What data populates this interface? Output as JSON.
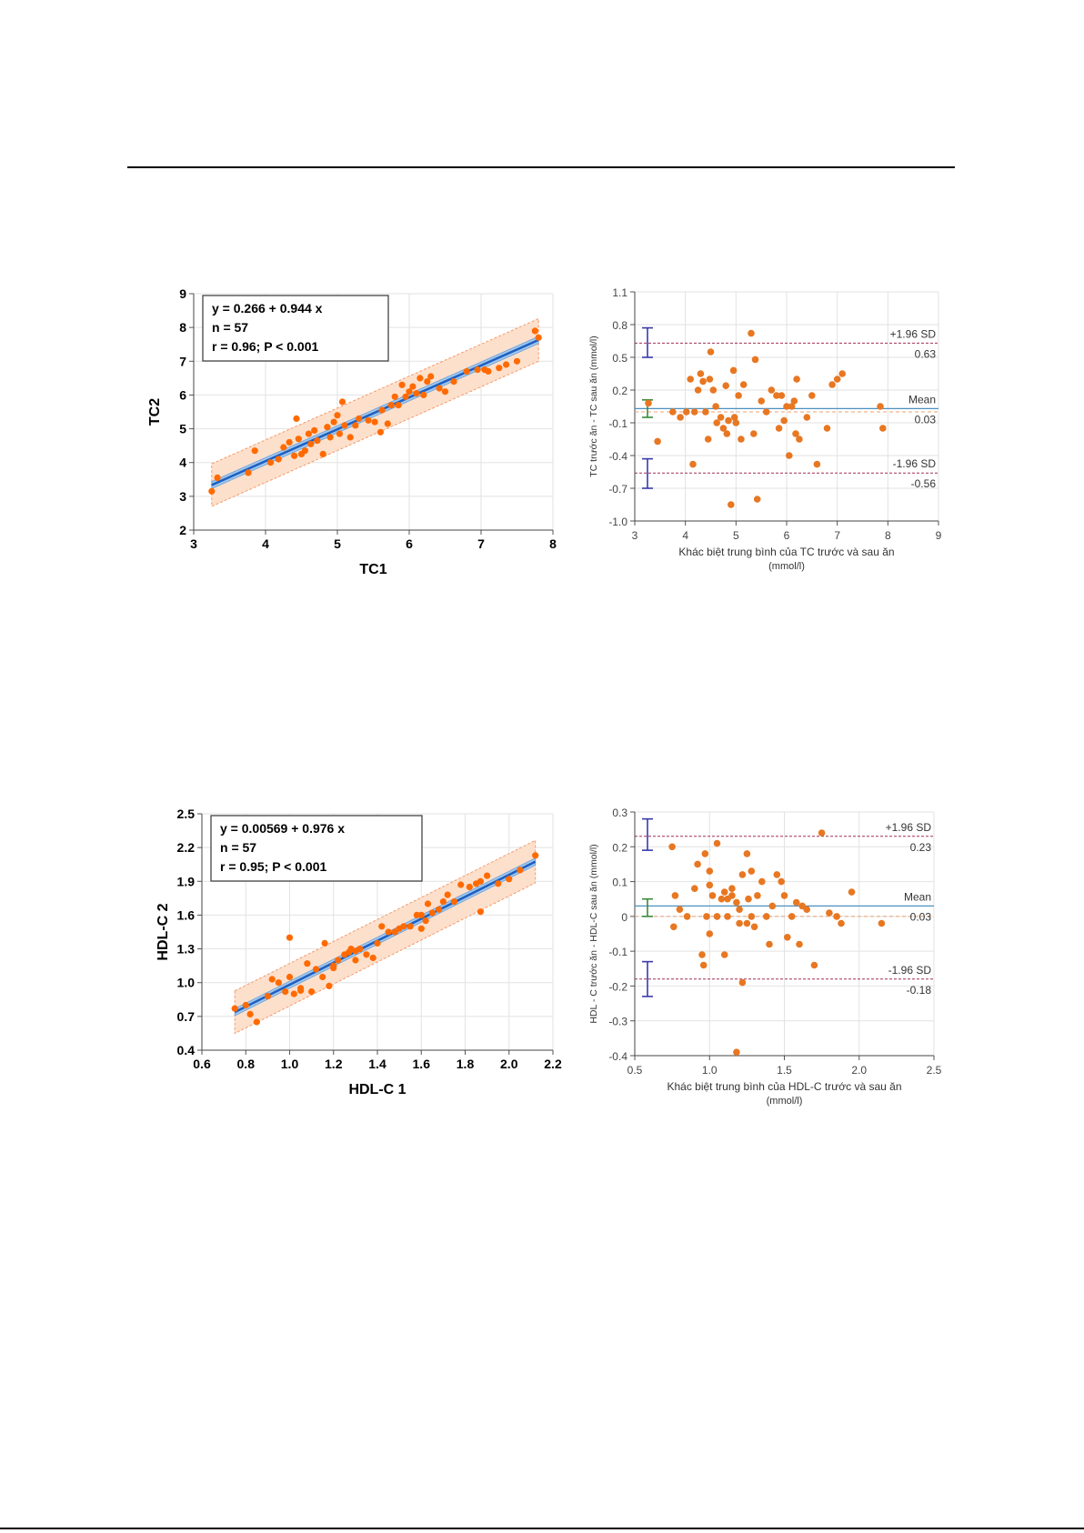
{
  "chart_data": [
    {
      "type": "scatter",
      "kind": "regression",
      "xlabel": "TC1",
      "ylabel": "TC2",
      "xlim": [
        3,
        8
      ],
      "ylim": [
        2,
        9
      ],
      "xticks": [
        "3",
        "4",
        "5",
        "6",
        "7",
        "8"
      ],
      "yticks": [
        "2",
        "3",
        "4",
        "5",
        "6",
        "7",
        "8",
        "9"
      ],
      "legend": [
        "y = 0.266  +  0.944  x",
        "n = 57",
        "r = 0.96; P < 0.001"
      ],
      "regression": {
        "intercept": 0.266,
        "slope": 0.944
      },
      "colors": {
        "points": "#ff6a00",
        "line": "#1f5fbf",
        "ci": "#9fc7ef",
        "band": "#fde0cc",
        "band_edge": "#f59a68"
      },
      "x": [
        3.25,
        3.33,
        3.76,
        3.85,
        4.07,
        4.18,
        4.25,
        4.33,
        4.4,
        4.43,
        4.46,
        4.5,
        4.55,
        4.6,
        4.63,
        4.68,
        4.72,
        4.8,
        4.86,
        4.9,
        4.95,
        5.0,
        5.03,
        5.07,
        5.1,
        5.18,
        5.25,
        5.3,
        5.43,
        5.52,
        5.6,
        5.62,
        5.7,
        5.75,
        5.8,
        5.85,
        5.9,
        5.95,
        6.0,
        6.05,
        6.1,
        6.15,
        6.2,
        6.25,
        6.3,
        6.42,
        6.5,
        6.62,
        6.8,
        6.95,
        7.05,
        7.1,
        7.25,
        7.35,
        7.5,
        7.75,
        7.8
      ],
      "y": [
        3.15,
        3.55,
        3.7,
        4.35,
        4.0,
        4.1,
        4.45,
        4.6,
        4.2,
        5.3,
        4.7,
        4.25,
        4.35,
        4.85,
        4.55,
        4.95,
        4.65,
        4.25,
        5.05,
        4.75,
        5.2,
        5.4,
        4.85,
        5.8,
        5.1,
        4.75,
        5.1,
        5.3,
        5.25,
        5.2,
        4.9,
        5.55,
        5.15,
        5.7,
        5.95,
        5.7,
        6.3,
        5.95,
        6.1,
        6.25,
        6.05,
        6.5,
        6.0,
        6.4,
        6.55,
        6.2,
        6.1,
        6.4,
        6.7,
        6.75,
        6.75,
        6.7,
        6.8,
        6.9,
        7.0,
        7.9,
        7.7
      ]
    },
    {
      "type": "scatter",
      "kind": "bland-altman",
      "xlabel": [
        "Khác  biệt  trung  bình  của  TC  trước  và sau ăn",
        "(mmol/l)"
      ],
      "ylabel": "TC trước ăn  - TC sau ăn (mmol/l)",
      "xlim": [
        3,
        9
      ],
      "ylim": [
        -1.0,
        1.1
      ],
      "xticks": [
        "3",
        "4",
        "5",
        "6",
        "7",
        "8",
        "9"
      ],
      "yticks": [
        "-1.0",
        "-0.7",
        "-0.4",
        "-0.1",
        "0.2",
        "0.5",
        "0.8",
        "1.1"
      ],
      "lines": {
        "upper": 0.63,
        "mean": 0.03,
        "lower": -0.56
      },
      "labels": {
        "upper_name": "+1.96 SD",
        "upper_value": "0.63",
        "mean_name": "Mean",
        "mean_value": "0.03",
        "lower_name": "-1.96 SD",
        "lower_value": "-0.56"
      },
      "error_bars": {
        "upper": [
          0.5,
          0.77
        ],
        "mean": [
          -0.05,
          0.11
        ],
        "lower": [
          -0.7,
          -0.43
        ]
      },
      "colors": {
        "points": "#e87722",
        "mean_line": "#4a90c0",
        "limit_line": "#a03050",
        "upper_bar": "#3a3aa8",
        "mean_bar": "#3a8a3a"
      },
      "x": [
        3.27,
        3.45,
        3.75,
        3.9,
        4.02,
        4.1,
        4.15,
        4.18,
        4.25,
        4.3,
        4.35,
        4.4,
        4.45,
        4.48,
        4.5,
        4.55,
        4.6,
        4.62,
        4.7,
        4.75,
        4.8,
        4.82,
        4.85,
        4.9,
        4.95,
        4.97,
        5.0,
        5.05,
        5.1,
        5.15,
        5.3,
        5.35,
        5.38,
        5.42,
        5.5,
        5.6,
        5.7,
        5.8,
        5.85,
        5.9,
        5.95,
        6.0,
        6.05,
        6.1,
        6.15,
        6.18,
        6.2,
        6.25,
        6.4,
        6.5,
        6.6,
        6.8,
        6.9,
        7.0,
        7.1,
        7.85,
        7.9
      ],
      "y": [
        0.08,
        -0.27,
        0.0,
        -0.05,
        0.0,
        0.3,
        -0.48,
        0.0,
        0.2,
        0.35,
        0.28,
        0.0,
        -0.25,
        0.3,
        0.55,
        0.2,
        0.05,
        -0.1,
        -0.05,
        -0.15,
        0.24,
        -0.2,
        -0.08,
        -0.85,
        0.38,
        -0.05,
        -0.1,
        0.15,
        -0.25,
        0.25,
        0.72,
        -0.2,
        0.48,
        -0.8,
        0.1,
        0.0,
        0.2,
        0.15,
        -0.15,
        0.15,
        -0.08,
        0.05,
        -0.4,
        0.05,
        0.1,
        -0.2,
        0.3,
        -0.25,
        -0.05,
        0.15,
        -0.48,
        -0.15,
        0.25,
        0.3,
        0.35,
        0.05,
        -0.15
      ]
    },
    {
      "type": "scatter",
      "kind": "regression",
      "xlabel": "HDL-C 1",
      "ylabel": "HDL-C 2",
      "xlim": [
        0.6,
        2.2
      ],
      "ylim": [
        0.4,
        2.5
      ],
      "xticks": [
        "0.6",
        "0.8",
        "1.0",
        "1.2",
        "1.4",
        "1.6",
        "1.8",
        "2.0",
        "2.2"
      ],
      "yticks": [
        "0.4",
        "0.7",
        "1.0",
        "1.3",
        "1.6",
        "1.9",
        "2.2",
        "2.5"
      ],
      "legend": [
        "y = 0.00569  +  0.976  x",
        "n = 57",
        "r = 0.95; P < 0.001"
      ],
      "regression": {
        "intercept": 0.00569,
        "slope": 0.976
      },
      "colors": {
        "points": "#ff6a00",
        "line": "#1f5fbf",
        "ci": "#9fc7ef",
        "band": "#fde0cc",
        "band_edge": "#f59a68"
      },
      "x": [
        0.75,
        0.8,
        0.82,
        0.85,
        0.9,
        0.92,
        0.95,
        0.98,
        1.0,
        1.0,
        1.02,
        1.05,
        1.05,
        1.08,
        1.1,
        1.12,
        1.15,
        1.16,
        1.18,
        1.2,
        1.2,
        1.22,
        1.25,
        1.27,
        1.28,
        1.3,
        1.3,
        1.32,
        1.35,
        1.38,
        1.4,
        1.42,
        1.45,
        1.48,
        1.5,
        1.52,
        1.55,
        1.58,
        1.6,
        1.6,
        1.62,
        1.63,
        1.65,
        1.68,
        1.7,
        1.72,
        1.75,
        1.78,
        1.82,
        1.85,
        1.87,
        1.87,
        1.9,
        1.95,
        2.0,
        2.05,
        2.12
      ],
      "y": [
        0.77,
        0.8,
        0.72,
        0.65,
        0.88,
        1.03,
        1.0,
        0.92,
        1.4,
        1.05,
        0.9,
        0.95,
        0.93,
        1.17,
        0.92,
        1.12,
        1.05,
        1.35,
        0.97,
        1.13,
        1.15,
        1.2,
        1.25,
        1.27,
        1.3,
        1.2,
        1.28,
        1.3,
        1.25,
        1.22,
        1.35,
        1.5,
        1.45,
        1.45,
        1.48,
        1.5,
        1.5,
        1.6,
        1.48,
        1.6,
        1.55,
        1.7,
        1.62,
        1.65,
        1.72,
        1.78,
        1.72,
        1.87,
        1.85,
        1.88,
        1.63,
        1.9,
        1.95,
        1.88,
        1.92,
        2.0,
        2.13
      ]
    },
    {
      "type": "scatter",
      "kind": "bland-altman",
      "xlabel": [
        "Khác  biệt  trung  bình  của HDL-C  trước  và sau ăn",
        "(mmol/l)"
      ],
      "ylabel": "HDL - C trước ăn - HDL-C sau ăn (mmol/l)",
      "xlim": [
        0.5,
        2.5
      ],
      "ylim": [
        -0.4,
        0.3
      ],
      "xticks": [
        "0.5",
        "1.0",
        "1.5",
        "2.0",
        "2.5"
      ],
      "yticks": [
        "-0.4",
        "-0.3",
        "-0.2",
        "-0.1",
        "0",
        "0.1",
        "0.2",
        "0.3"
      ],
      "lines": {
        "upper": 0.23,
        "mean": 0.03,
        "lower": -0.18
      },
      "labels": {
        "upper_name": "+1.96 SD",
        "upper_value": "0.23",
        "mean_name": "Mean",
        "mean_value": "0.03",
        "lower_name": "-1.96 SD",
        "lower_value": "-0.18"
      },
      "error_bars": {
        "upper": [
          0.19,
          0.28
        ],
        "mean": [
          0.0,
          0.05
        ],
        "lower": [
          -0.23,
          -0.13
        ]
      },
      "colors": {
        "points": "#e87722",
        "mean_line": "#4a90c0",
        "limit_line": "#a03050",
        "upper_bar": "#3a3aa8",
        "mean_bar": "#3a8a3a"
      },
      "x": [
        0.75,
        0.76,
        0.77,
        0.8,
        0.85,
        0.9,
        0.92,
        0.95,
        0.96,
        0.97,
        0.98,
        1.0,
        1.0,
        1.0,
        1.02,
        1.05,
        1.05,
        1.08,
        1.1,
        1.1,
        1.12,
        1.12,
        1.15,
        1.15,
        1.18,
        1.18,
        1.2,
        1.2,
        1.22,
        1.22,
        1.25,
        1.25,
        1.26,
        1.28,
        1.28,
        1.3,
        1.32,
        1.35,
        1.38,
        1.4,
        1.42,
        1.45,
        1.48,
        1.5,
        1.52,
        1.55,
        1.58,
        1.6,
        1.62,
        1.65,
        1.7,
        1.75,
        1.8,
        1.85,
        1.88,
        1.95,
        2.15
      ],
      "y": [
        0.2,
        -0.03,
        0.06,
        0.02,
        0.0,
        0.08,
        0.15,
        -0.11,
        -0.14,
        0.18,
        0.0,
        0.13,
        0.09,
        -0.05,
        0.06,
        0.21,
        0.0,
        0.05,
        -0.11,
        0.07,
        0.0,
        0.05,
        0.08,
        0.06,
        -0.39,
        0.04,
        -0.02,
        0.02,
        0.12,
        -0.19,
        0.18,
        -0.02,
        0.05,
        0.0,
        0.13,
        -0.03,
        0.06,
        0.1,
        0.0,
        -0.08,
        0.03,
        0.12,
        0.1,
        0.06,
        -0.06,
        0.0,
        0.04,
        -0.08,
        0.03,
        0.02,
        -0.14,
        0.24,
        0.01,
        0.0,
        -0.02,
        0.07,
        -0.02
      ]
    }
  ]
}
